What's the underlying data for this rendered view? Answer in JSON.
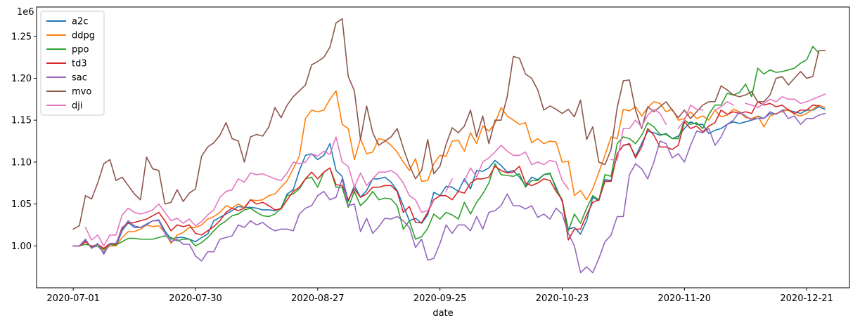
{
  "chart_data": {
    "type": "line",
    "xlabel": "date",
    "ylabel": "",
    "offset_text": "1e6",
    "ylim": [
      0.95,
      1.285
    ],
    "yticks": [
      1.0,
      1.05,
      1.1,
      1.15,
      1.2,
      1.25
    ],
    "ytick_labels": [
      "1.00",
      "1.05",
      "1.10",
      "1.15",
      "1.20",
      "1.25"
    ],
    "xtick_labels": [
      "2020-07-01",
      "2020-07-30",
      "2020-08-27",
      "2020-09-25",
      "2020-10-23",
      "2020-11-20",
      "2020-12-21"
    ],
    "xtick_index": [
      0,
      20,
      40,
      60,
      80,
      100,
      120
    ],
    "xlim_index": [
      -6,
      127
    ],
    "legend_position": "top-left",
    "grid": false,
    "series": [
      {
        "name": "a2c",
        "color": "#1f77b4",
        "values": [
          1.0,
          1.0,
          1.006,
          0.998,
          1.0,
          0.992,
          1.002,
          1.0,
          1.018,
          1.028,
          1.022,
          1.022,
          1.026,
          1.03,
          1.031,
          1.018,
          1.008,
          1.01,
          1.01,
          1.008,
          1.005,
          1.01,
          1.014,
          1.03,
          1.034,
          1.038,
          1.042,
          1.047,
          1.046,
          1.046,
          1.045,
          1.043,
          1.043,
          1.042,
          1.045,
          1.062,
          1.067,
          1.09,
          1.108,
          1.11,
          1.103,
          1.108,
          1.122,
          1.09,
          1.083,
          1.053,
          1.072,
          1.058,
          1.066,
          1.08,
          1.08,
          1.082,
          1.076,
          1.066,
          1.048,
          1.03,
          1.033,
          1.027,
          1.037,
          1.064,
          1.06,
          1.071,
          1.07,
          1.065,
          1.08,
          1.068,
          1.09,
          1.089,
          1.093,
          1.102,
          1.096,
          1.088,
          1.09,
          1.082,
          1.072,
          1.082,
          1.079,
          1.085,
          1.086,
          1.07,
          1.053,
          1.02,
          1.022,
          1.014,
          1.03,
          1.058,
          1.054,
          1.079,
          1.078,
          1.11,
          1.12,
          1.121,
          1.107,
          1.122,
          1.137,
          1.135,
          1.132,
          1.134,
          1.128,
          1.131,
          1.14,
          1.148,
          1.145,
          1.145,
          1.134,
          1.138,
          1.14,
          1.145,
          1.148,
          1.146,
          1.148,
          1.15,
          1.155,
          1.152,
          1.158,
          1.157,
          1.162,
          1.162,
          1.16,
          1.158,
          1.162,
          1.162,
          1.166,
          1.163
        ]
      },
      {
        "name": "ddpg",
        "color": "#ff7f0e",
        "values": [
          1.0,
          1.0,
          1.002,
          1.0,
          1.0,
          0.995,
          1.0,
          1.0,
          1.01,
          1.017,
          1.017,
          1.02,
          1.025,
          1.023,
          1.024,
          1.016,
          1.003,
          1.013,
          1.016,
          1.022,
          1.022,
          1.025,
          1.032,
          1.035,
          1.04,
          1.048,
          1.045,
          1.05,
          1.046,
          1.055,
          1.054,
          1.055,
          1.06,
          1.062,
          1.07,
          1.078,
          1.092,
          1.107,
          1.152,
          1.162,
          1.16,
          1.162,
          1.175,
          1.185,
          1.145,
          1.14,
          1.103,
          1.128,
          1.11,
          1.112,
          1.128,
          1.126,
          1.12,
          1.112,
          1.1,
          1.09,
          1.104,
          1.077,
          1.078,
          1.098,
          1.108,
          1.107,
          1.125,
          1.126,
          1.113,
          1.135,
          1.122,
          1.143,
          1.137,
          1.146,
          1.165,
          1.155,
          1.15,
          1.145,
          1.147,
          1.123,
          1.128,
          1.122,
          1.125,
          1.124,
          1.1,
          1.101,
          1.06,
          1.066,
          1.055,
          1.068,
          1.088,
          1.108,
          1.13,
          1.128,
          1.163,
          1.161,
          1.166,
          1.155,
          1.165,
          1.172,
          1.17,
          1.16,
          1.163,
          1.15,
          1.152,
          1.16,
          1.152,
          1.155,
          1.15,
          1.162,
          1.154,
          1.156,
          1.163,
          1.16,
          1.153,
          1.152,
          1.155,
          1.142,
          1.155,
          1.158,
          1.16,
          1.163,
          1.157,
          1.155,
          1.158,
          1.163,
          1.168,
          1.165
        ]
      },
      {
        "name": "ppo",
        "color": "#2ca02c",
        "values": [
          1.0,
          1.0,
          1.002,
          1.0,
          1.0,
          0.996,
          1.002,
          1.001,
          1.005,
          1.009,
          1.009,
          1.008,
          1.008,
          1.008,
          1.01,
          1.012,
          1.01,
          1.006,
          1.008,
          1.008,
          1.0,
          1.004,
          1.01,
          1.018,
          1.025,
          1.03,
          1.036,
          1.038,
          1.043,
          1.045,
          1.04,
          1.036,
          1.035,
          1.038,
          1.045,
          1.06,
          1.062,
          1.068,
          1.08,
          1.082,
          1.07,
          1.088,
          1.093,
          1.07,
          1.07,
          1.046,
          1.065,
          1.048,
          1.055,
          1.065,
          1.055,
          1.057,
          1.056,
          1.048,
          1.02,
          1.03,
          1.008,
          1.011,
          1.021,
          1.038,
          1.032,
          1.04,
          1.037,
          1.032,
          1.052,
          1.038,
          1.052,
          1.062,
          1.075,
          1.098,
          1.085,
          1.084,
          1.083,
          1.086,
          1.07,
          1.078,
          1.078,
          1.085,
          1.087,
          1.068,
          1.055,
          1.018,
          1.038,
          1.027,
          1.045,
          1.06,
          1.055,
          1.085,
          1.083,
          1.122,
          1.13,
          1.128,
          1.122,
          1.132,
          1.147,
          1.142,
          1.133,
          1.133,
          1.128,
          1.128,
          1.15,
          1.145,
          1.147,
          1.14,
          1.157,
          1.168,
          1.168,
          1.182,
          1.18,
          1.183,
          1.193,
          1.178,
          1.212,
          1.205,
          1.21,
          1.207,
          1.208,
          1.21,
          1.212,
          1.218,
          1.222,
          1.238,
          1.23
        ]
      },
      {
        "name": "td3",
        "color": "#d62728",
        "values": [
          1.0,
          1.0,
          1.005,
          0.999,
          1.002,
          0.997,
          1.003,
          1.002,
          1.022,
          1.027,
          1.028,
          1.03,
          1.032,
          1.036,
          1.04,
          1.03,
          1.018,
          1.025,
          1.023,
          1.025,
          1.015,
          1.013,
          1.018,
          1.023,
          1.03,
          1.04,
          1.045,
          1.042,
          1.045,
          1.055,
          1.05,
          1.052,
          1.048,
          1.043,
          1.044,
          1.055,
          1.065,
          1.07,
          1.08,
          1.088,
          1.08,
          1.088,
          1.093,
          1.073,
          1.072,
          1.055,
          1.068,
          1.058,
          1.062,
          1.07,
          1.07,
          1.072,
          1.072,
          1.065,
          1.04,
          1.047,
          1.028,
          1.028,
          1.04,
          1.055,
          1.06,
          1.06,
          1.055,
          1.065,
          1.063,
          1.075,
          1.08,
          1.08,
          1.082,
          1.095,
          1.09,
          1.087,
          1.088,
          1.095,
          1.075,
          1.072,
          1.075,
          1.08,
          1.078,
          1.065,
          1.055,
          1.007,
          1.02,
          1.02,
          1.037,
          1.052,
          1.055,
          1.077,
          1.077,
          1.11,
          1.12,
          1.122,
          1.105,
          1.118,
          1.14,
          1.132,
          1.118,
          1.118,
          1.115,
          1.12,
          1.148,
          1.14,
          1.143,
          1.136,
          1.143,
          1.147,
          1.162,
          1.157,
          1.16,
          1.158,
          1.16,
          1.158,
          1.172,
          1.168,
          1.17,
          1.166,
          1.168,
          1.162,
          1.158,
          1.162,
          1.162,
          1.168,
          1.167
        ]
      },
      {
        "name": "sac",
        "color": "#9467bd",
        "values": [
          1.0,
          1.0,
          1.008,
          0.997,
          1.003,
          0.99,
          1.003,
          1.003,
          1.02,
          1.03,
          1.024,
          1.022,
          1.025,
          1.03,
          1.03,
          1.015,
          1.005,
          1.008,
          1.002,
          1.002,
          0.988,
          0.982,
          0.993,
          0.993,
          1.008,
          1.01,
          1.012,
          1.025,
          1.022,
          1.03,
          1.025,
          1.028,
          1.022,
          1.018,
          1.02,
          1.02,
          1.018,
          1.038,
          1.045,
          1.048,
          1.06,
          1.065,
          1.055,
          1.058,
          1.08,
          1.048,
          1.05,
          1.017,
          1.033,
          1.015,
          1.023,
          1.033,
          1.032,
          1.035,
          1.03,
          1.022,
          0.998,
          1.008,
          0.983,
          0.985,
          1.003,
          1.025,
          1.015,
          1.025,
          1.025,
          1.018,
          1.035,
          1.02,
          1.04,
          1.042,
          1.048,
          1.062,
          1.048,
          1.048,
          1.044,
          1.048,
          1.034,
          1.038,
          1.032,
          1.045,
          1.038,
          1.015,
          1.0,
          0.968,
          0.975,
          0.968,
          0.985,
          1.005,
          1.013,
          1.035,
          1.035,
          1.085,
          1.098,
          1.092,
          1.08,
          1.1,
          1.125,
          1.122,
          1.105,
          1.11,
          1.1,
          1.12,
          1.137,
          1.135,
          1.14,
          1.12,
          1.13,
          1.145,
          1.15,
          1.16,
          1.155,
          1.15,
          1.152,
          1.152,
          1.16,
          1.157,
          1.162,
          1.152,
          1.155,
          1.145,
          1.152,
          1.152,
          1.156,
          1.158
        ]
      },
      {
        "name": "mvo",
        "color": "#8c564b",
        "values": [
          1.02,
          1.024,
          1.06,
          1.056,
          1.075,
          1.098,
          1.103,
          1.078,
          1.082,
          1.072,
          1.062,
          1.055,
          1.106,
          1.092,
          1.09,
          1.05,
          1.052,
          1.067,
          1.053,
          1.063,
          1.068,
          1.107,
          1.118,
          1.123,
          1.132,
          1.147,
          1.128,
          1.125,
          1.1,
          1.13,
          1.133,
          1.131,
          1.142,
          1.165,
          1.153,
          1.168,
          1.178,
          1.185,
          1.192,
          1.216,
          1.22,
          1.225,
          1.237,
          1.266,
          1.271,
          1.202,
          1.185,
          1.127,
          1.167,
          1.135,
          1.12,
          1.125,
          1.13,
          1.14,
          1.117,
          1.096,
          1.08,
          1.09,
          1.127,
          1.086,
          1.095,
          1.121,
          1.141,
          1.135,
          1.143,
          1.162,
          1.13,
          1.155,
          1.122,
          1.15,
          1.15,
          1.178,
          1.226,
          1.224,
          1.205,
          1.2,
          1.186,
          1.162,
          1.167,
          1.163,
          1.158,
          1.163,
          1.154,
          1.174,
          1.127,
          1.142,
          1.1,
          1.097,
          1.115,
          1.165,
          1.197,
          1.198,
          1.162,
          1.14,
          1.166,
          1.16,
          1.166,
          1.172,
          1.162,
          1.153,
          1.162,
          1.152,
          1.16,
          1.168,
          1.172,
          1.172,
          1.191,
          1.186,
          1.18,
          1.178,
          1.18,
          1.184,
          1.172,
          1.172,
          1.18,
          1.2,
          1.202,
          1.192,
          1.2,
          1.208,
          1.2,
          1.202,
          1.233,
          1.233
        ]
      },
      {
        "name": "dji",
        "color": "#e377c2",
        "values": [
          null,
          null,
          1.022,
          1.007,
          1.013,
          1.0,
          1.013,
          1.013,
          1.037,
          1.045,
          1.04,
          1.038,
          1.04,
          1.043,
          1.05,
          1.04,
          1.03,
          1.033,
          1.027,
          1.032,
          1.024,
          1.029,
          1.037,
          1.043,
          1.058,
          1.065,
          1.067,
          1.08,
          1.076,
          1.087,
          1.085,
          1.086,
          1.083,
          1.08,
          1.078,
          1.087,
          1.1,
          1.098,
          1.1,
          1.11,
          1.107,
          1.113,
          1.109,
          1.13,
          1.1,
          1.095,
          1.07,
          1.087,
          1.072,
          1.08,
          1.088,
          1.088,
          1.09,
          1.085,
          1.075,
          1.06,
          1.055,
          1.04,
          1.042,
          1.056,
          null,
          1.065,
          1.08,
          null,
          1.077,
          1.093,
          1.082,
          1.1,
          1.105,
          1.112,
          1.12,
          1.113,
          1.108,
          1.108,
          1.112,
          1.097,
          1.1,
          1.097,
          1.102,
          1.1,
          1.078,
          1.068,
          null,
          null,
          null,
          null,
          null,
          null,
          1.103,
          1.102,
          1.14,
          1.14,
          1.15,
          1.142,
          1.156,
          1.163,
          1.158,
          1.145,
          null,
          1.14,
          1.15,
          1.168,
          1.163,
          1.162,
          null,
          1.162,
          1.166,
          1.172,
          1.168,
          null,
          1.17,
          1.168,
          1.165,
          1.17,
          1.175,
          1.172,
          1.178,
          1.175,
          1.175,
          1.17,
          1.172,
          1.175,
          1.178,
          1.181
        ]
      }
    ]
  }
}
